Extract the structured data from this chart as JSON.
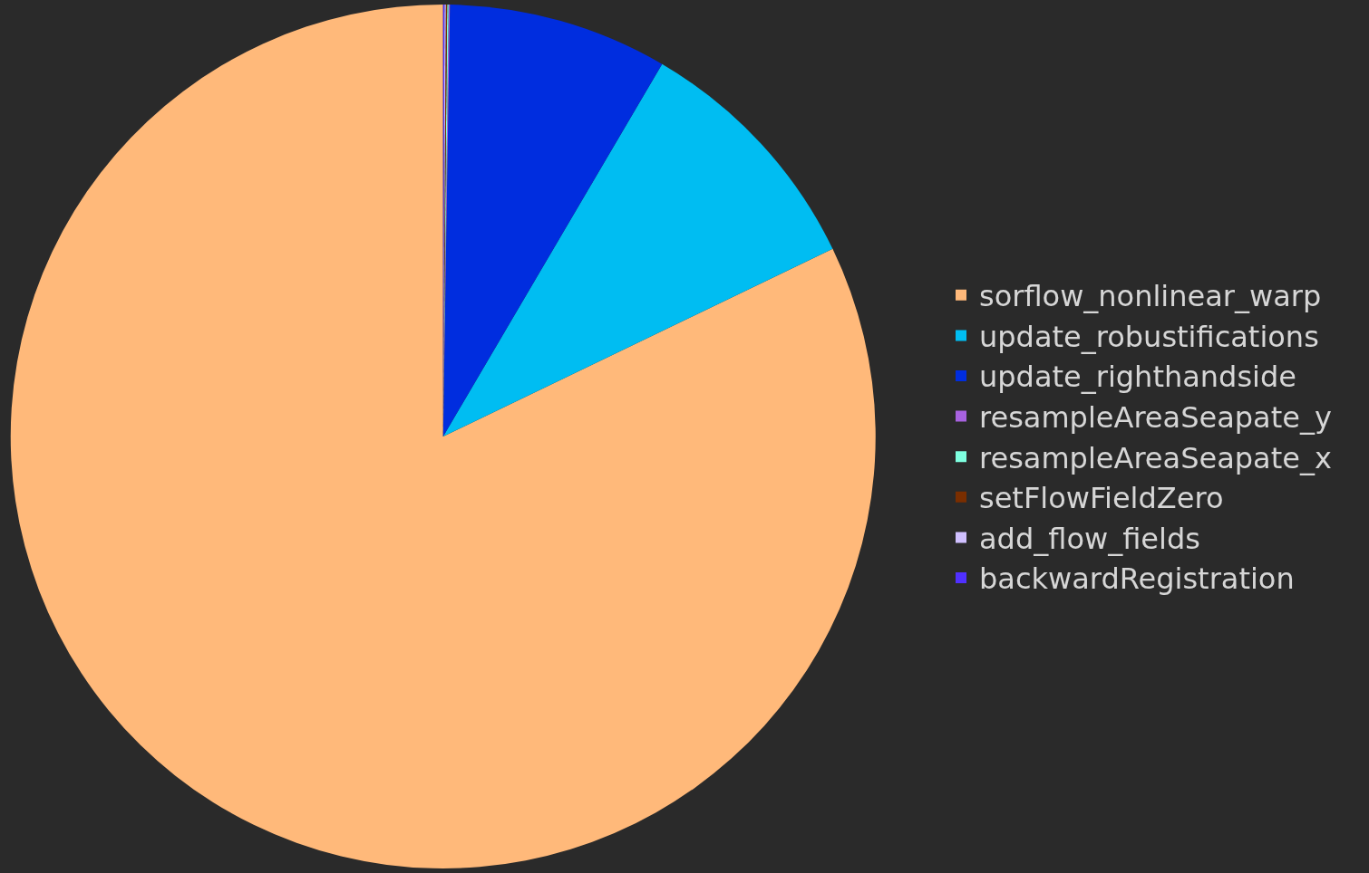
{
  "chart_data": {
    "type": "pie",
    "categories": [
      "sorflow_nonlinear_warp",
      "update_robustifications",
      "update_righthandside",
      "resampleAreaSeapate_y",
      "resampleAreaSeapate_x",
      "setFlowFieldZero",
      "add_flow_fields",
      "backwardRegistration"
    ],
    "values": [
      82.15,
      9.4,
      8.2,
      0.05,
      0.05,
      0.05,
      0.05,
      0.05
    ],
    "colors": [
      "#ffb97a",
      "#00bdf2",
      "#002ddf",
      "#a862e0",
      "#7effe0",
      "#7a2e00",
      "#d0c0ff",
      "#5030ff"
    ],
    "legend": "right"
  }
}
